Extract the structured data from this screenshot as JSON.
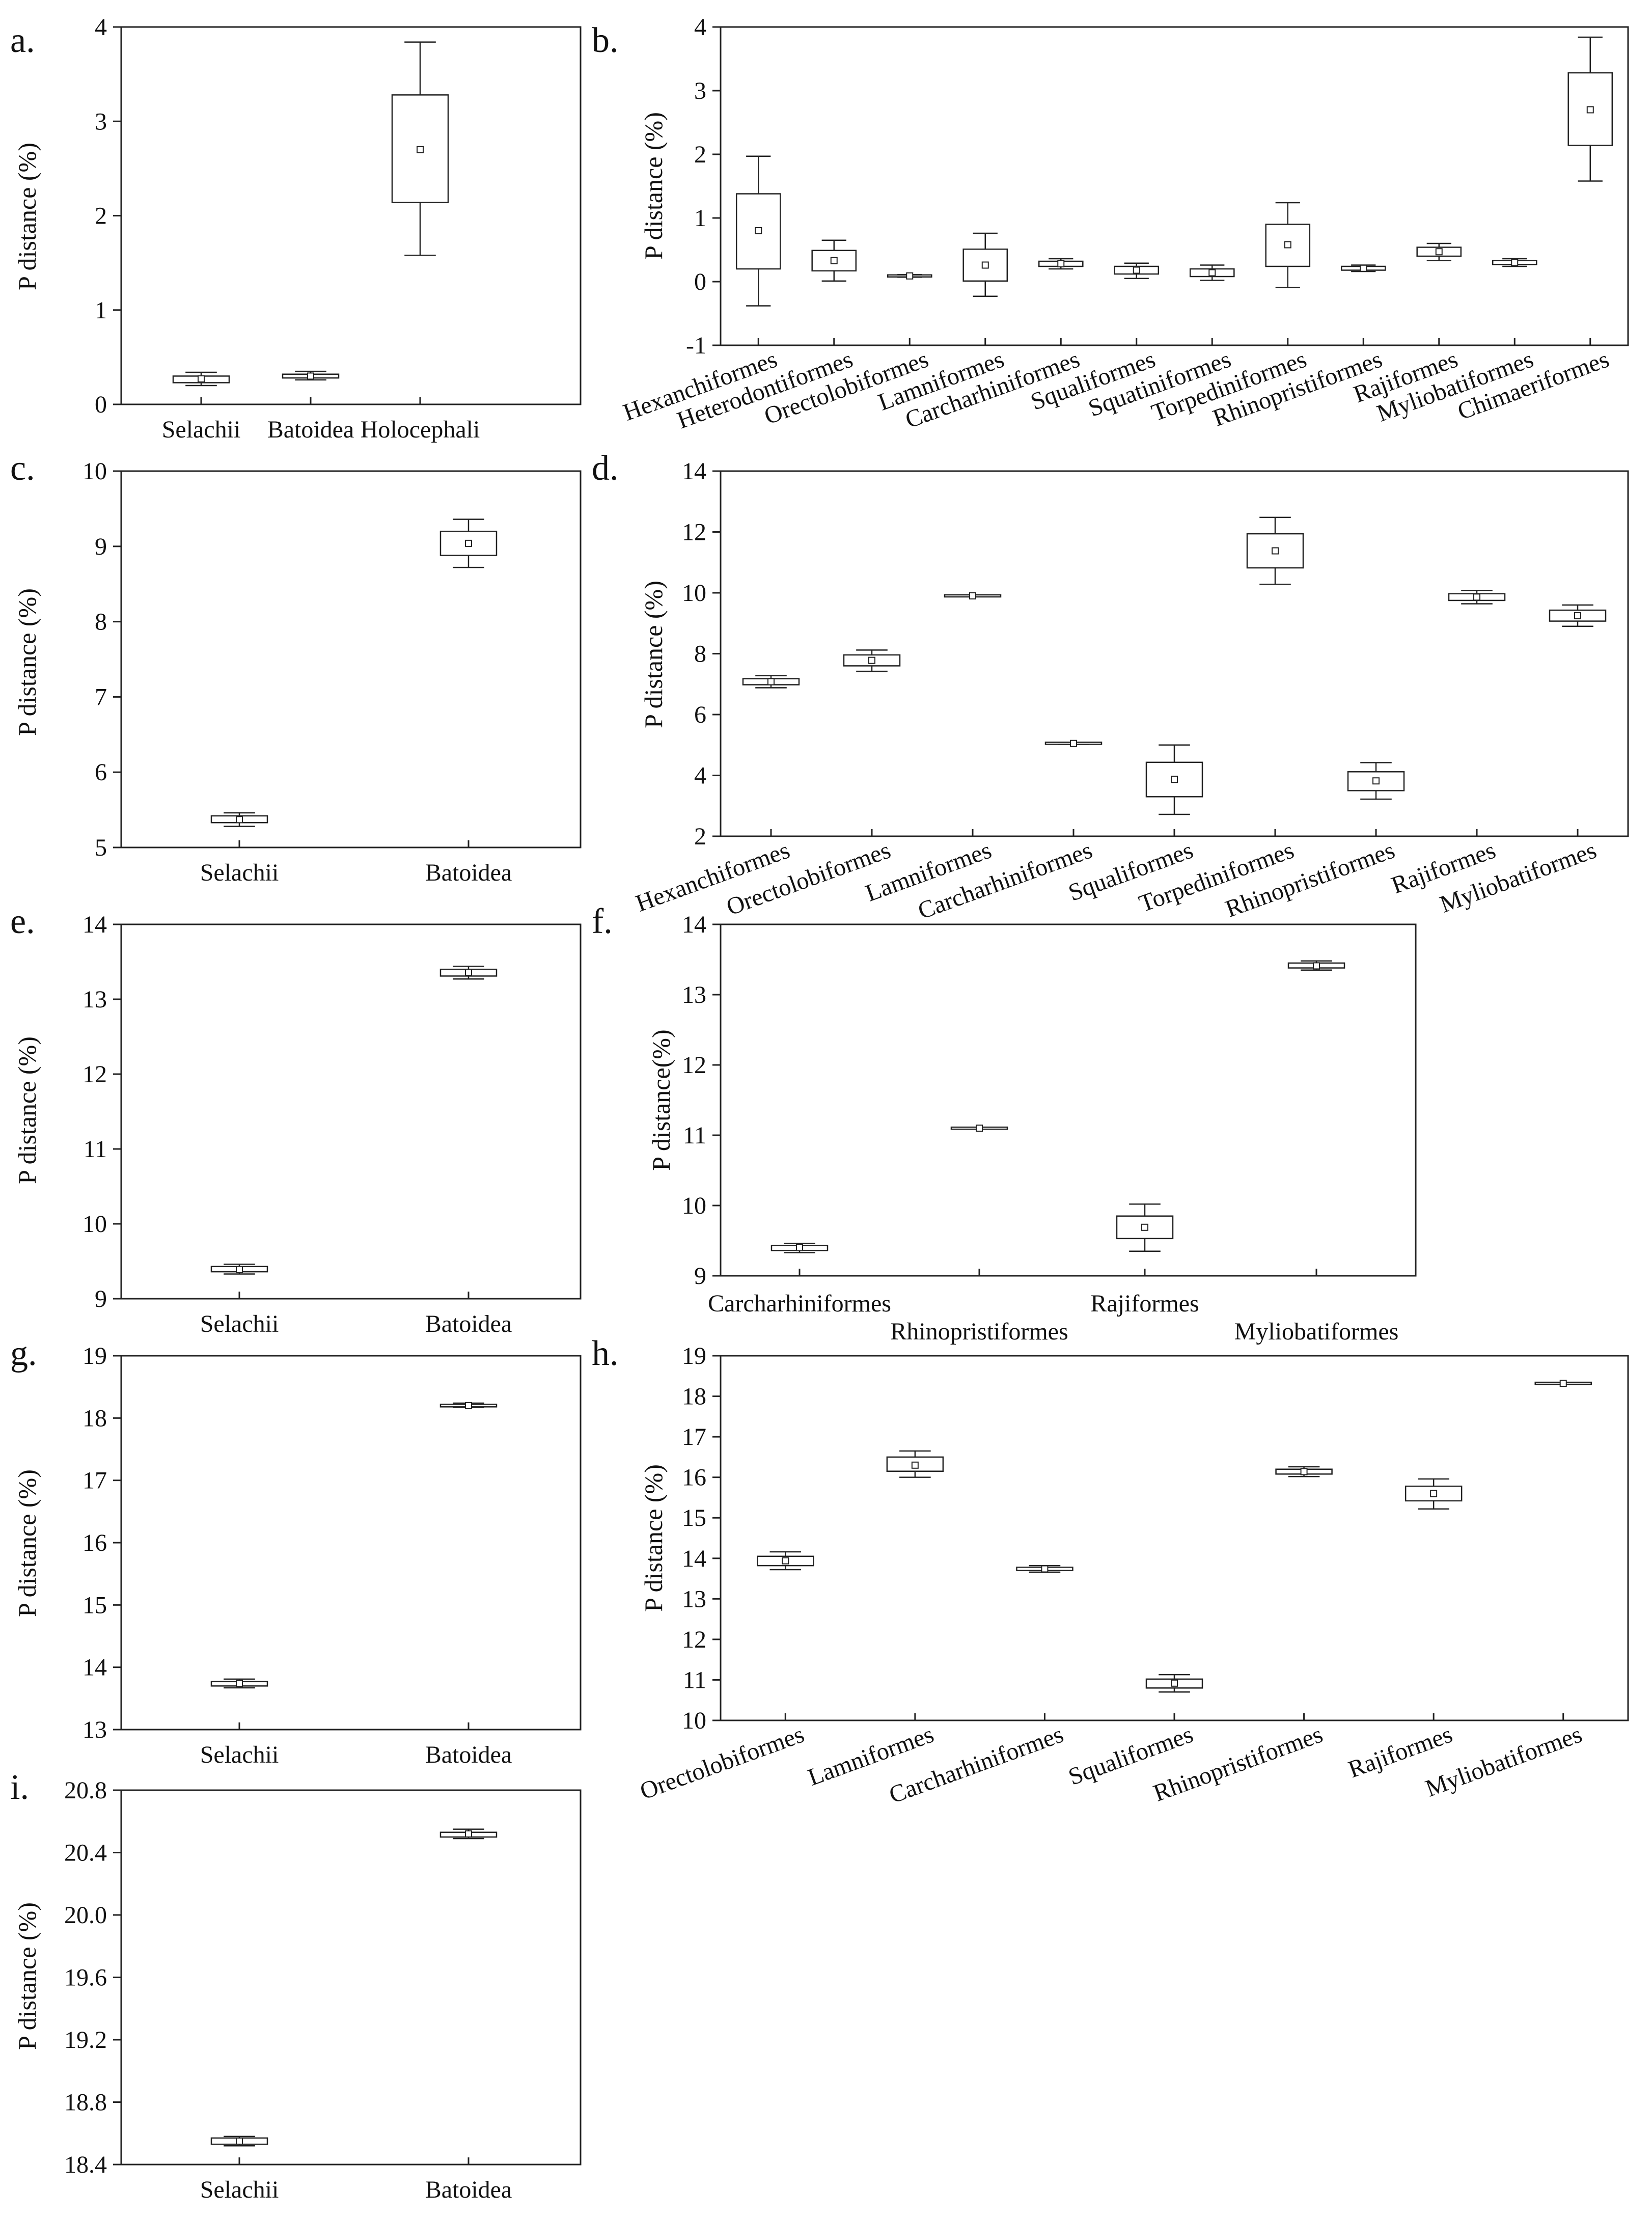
{
  "chart_data": [
    {
      "panel": "a.",
      "type": "box",
      "ylabel": "P distance (%)",
      "ylim": [
        0,
        4
      ],
      "yticks": [
        "0",
        "1",
        "2",
        "3",
        "4"
      ],
      "categories": [
        "Selachii",
        "Batoidea",
        "Holocephali"
      ],
      "boxes": [
        {
          "min": 0.2,
          "q1": 0.23,
          "mean": 0.27,
          "q3": 0.3,
          "max": 0.34
        },
        {
          "min": 0.26,
          "q1": 0.28,
          "mean": 0.3,
          "q3": 0.32,
          "max": 0.35
        },
        {
          "min": 1.58,
          "q1": 2.14,
          "mean": 2.7,
          "q3": 3.28,
          "max": 3.84
        }
      ]
    },
    {
      "panel": "b.",
      "type": "box",
      "ylabel": "P distance (%)",
      "ylim": [
        -1,
        4
      ],
      "yticks": [
        "-1",
        "0",
        "1",
        "2",
        "3",
        "4"
      ],
      "categories": [
        "Hexanchiformes",
        "Heterodontiformes",
        "Orectolobiformes",
        "Lamniformes",
        "Carcharhiniformes",
        "Squaliformes",
        "Squatiniformes",
        "Torpediniformes",
        "Rhinopristiformes",
        "Rajiformes",
        "Myliobatiformes",
        "Chimaeriformes"
      ],
      "boxes": [
        {
          "min": -0.38,
          "q1": 0.2,
          "mean": 0.8,
          "q3": 1.38,
          "max": 1.97
        },
        {
          "min": 0.01,
          "q1": 0.17,
          "mean": 0.33,
          "q3": 0.49,
          "max": 0.65
        },
        {
          "min": 0.07,
          "q1": 0.08,
          "mean": 0.09,
          "q3": 0.1,
          "max": 0.11
        },
        {
          "min": -0.23,
          "q1": 0.01,
          "mean": 0.26,
          "q3": 0.51,
          "max": 0.76
        },
        {
          "min": 0.2,
          "q1": 0.24,
          "mean": 0.28,
          "q3": 0.32,
          "max": 0.36
        },
        {
          "min": 0.05,
          "q1": 0.12,
          "mean": 0.18,
          "q3": 0.24,
          "max": 0.29
        },
        {
          "min": 0.02,
          "q1": 0.08,
          "mean": 0.14,
          "q3": 0.2,
          "max": 0.26
        },
        {
          "min": -0.09,
          "q1": 0.24,
          "mean": 0.58,
          "q3": 0.9,
          "max": 1.24
        },
        {
          "min": 0.16,
          "q1": 0.18,
          "mean": 0.21,
          "q3": 0.24,
          "max": 0.26
        },
        {
          "min": 0.33,
          "q1": 0.4,
          "mean": 0.47,
          "q3": 0.54,
          "max": 0.6
        },
        {
          "min": 0.24,
          "q1": 0.27,
          "mean": 0.3,
          "q3": 0.33,
          "max": 0.36
        },
        {
          "min": 1.58,
          "q1": 2.14,
          "mean": 2.7,
          "q3": 3.28,
          "max": 3.84
        }
      ]
    },
    {
      "panel": "c.",
      "type": "box",
      "ylabel": "P distance (%)",
      "ylim": [
        5,
        10
      ],
      "yticks": [
        "5",
        "6",
        "7",
        "8",
        "9",
        "10"
      ],
      "categories": [
        "Selachii",
        "Batoidea"
      ],
      "boxes": [
        {
          "min": 5.28,
          "q1": 5.33,
          "mean": 5.37,
          "q3": 5.42,
          "max": 5.46
        },
        {
          "min": 8.72,
          "q1": 8.88,
          "mean": 9.04,
          "q3": 9.2,
          "max": 9.36
        }
      ]
    },
    {
      "panel": "d.",
      "type": "box",
      "ylabel": "P distance (%)",
      "ylim": [
        2,
        14
      ],
      "yticks": [
        "2",
        "4",
        "6",
        "8",
        "10",
        "12",
        "14"
      ],
      "categories": [
        "Hexanchiformes",
        "Orectolobiformes",
        "Lamniformes",
        "Carcharhiniformes",
        "Squaliformes",
        "Torpediniformes",
        "Rhinopristiformes",
        "Rajiformes",
        "Myliobatiformes"
      ],
      "boxes": [
        {
          "min": 6.88,
          "q1": 6.98,
          "mean": 7.08,
          "q3": 7.18,
          "max": 7.28
        },
        {
          "min": 7.42,
          "q1": 7.6,
          "mean": 7.78,
          "q3": 7.96,
          "max": 8.12
        },
        {
          "min": 9.87,
          "q1": 9.88,
          "mean": 9.9,
          "q3": 9.92,
          "max": 9.93
        },
        {
          "min": 5.02,
          "q1": 5.04,
          "mean": 5.05,
          "q3": 5.07,
          "max": 5.08
        },
        {
          "min": 2.72,
          "q1": 3.3,
          "mean": 3.87,
          "q3": 4.43,
          "max": 5.0
        },
        {
          "min": 10.28,
          "q1": 10.82,
          "mean": 11.38,
          "q3": 11.94,
          "max": 12.48
        },
        {
          "min": 3.22,
          "q1": 3.5,
          "mean": 3.82,
          "q3": 4.12,
          "max": 4.42
        },
        {
          "min": 9.64,
          "q1": 9.75,
          "mean": 9.86,
          "q3": 9.97,
          "max": 10.08
        },
        {
          "min": 8.9,
          "q1": 9.07,
          "mean": 9.25,
          "q3": 9.43,
          "max": 9.6
        }
      ]
    },
    {
      "panel": "e.",
      "type": "box",
      "ylabel": "P distance (%)",
      "ylim": [
        9,
        14
      ],
      "yticks": [
        "9",
        "10",
        "11",
        "12",
        "13",
        "14"
      ],
      "categories": [
        "Selachii",
        "Batoidea"
      ],
      "boxes": [
        {
          "min": 9.33,
          "q1": 9.36,
          "mean": 9.39,
          "q3": 9.43,
          "max": 9.46
        },
        {
          "min": 13.27,
          "q1": 13.31,
          "mean": 13.36,
          "q3": 13.4,
          "max": 13.44
        }
      ]
    },
    {
      "panel": "f.",
      "type": "box",
      "ylabel": "P distance(%)",
      "ylim": [
        9,
        14
      ],
      "yticks": [
        "9",
        "10",
        "11",
        "12",
        "13",
        "14"
      ],
      "categories": [
        "Carcharhiniformes",
        "Rhinopristiformes",
        "Rajiformes",
        "Myliobatiformes"
      ],
      "boxes": [
        {
          "min": 9.33,
          "q1": 9.36,
          "mean": 9.4,
          "q3": 9.43,
          "max": 9.46
        },
        {
          "min": 11.1,
          "q1": 11.1,
          "mean": 11.1,
          "q3": 11.1,
          "max": 11.1
        },
        {
          "min": 9.35,
          "q1": 9.53,
          "mean": 9.69,
          "q3": 9.85,
          "max": 10.02
        },
        {
          "min": 13.35,
          "q1": 13.38,
          "mean": 13.41,
          "q3": 13.45,
          "max": 13.48
        }
      ]
    },
    {
      "panel": "g.",
      "type": "box",
      "ylabel": "P distance (%)",
      "ylim": [
        13,
        19
      ],
      "yticks": [
        "13",
        "14",
        "15",
        "16",
        "17",
        "18",
        "19"
      ],
      "categories": [
        "Selachii",
        "Batoidea"
      ],
      "boxes": [
        {
          "min": 13.67,
          "q1": 13.7,
          "mean": 13.74,
          "q3": 13.77,
          "max": 13.81
        },
        {
          "min": 18.17,
          "q1": 18.18,
          "mean": 18.2,
          "q3": 18.22,
          "max": 18.24
        }
      ]
    },
    {
      "panel": "h.",
      "type": "box",
      "ylabel": "P distance (%)",
      "ylim": [
        10,
        19
      ],
      "yticks": [
        "10",
        "11",
        "12",
        "13",
        "14",
        "15",
        "16",
        "17",
        "18",
        "19"
      ],
      "categories": [
        "Orectolobiformes",
        "Lamniformes",
        "Carcharhiniformes",
        "Squaliformes",
        "Rhinopristiformes",
        "Rajiformes",
        "Myliobatiformes"
      ],
      "boxes": [
        {
          "min": 13.72,
          "q1": 13.82,
          "mean": 13.94,
          "q3": 14.05,
          "max": 14.16
        },
        {
          "min": 16.0,
          "q1": 16.15,
          "mean": 16.3,
          "q3": 16.5,
          "max": 16.65
        },
        {
          "min": 13.66,
          "q1": 13.7,
          "mean": 13.74,
          "q3": 13.78,
          "max": 13.82
        },
        {
          "min": 10.7,
          "q1": 10.8,
          "mean": 10.92,
          "q3": 11.02,
          "max": 11.13
        },
        {
          "min": 16.02,
          "q1": 16.08,
          "mean": 16.14,
          "q3": 16.2,
          "max": 16.26
        },
        {
          "min": 15.22,
          "q1": 15.42,
          "mean": 15.6,
          "q3": 15.78,
          "max": 15.96
        },
        {
          "min": 18.3,
          "q1": 18.31,
          "mean": 18.32,
          "q3": 18.33,
          "max": 18.34
        }
      ]
    },
    {
      "panel": "i.",
      "type": "box",
      "ylabel": "P distance (%)",
      "ylim": [
        18.4,
        20.8
      ],
      "yticks": [
        "18.4",
        "18.8",
        "19.2",
        "19.6",
        "20.0",
        "20.4",
        "20.8"
      ],
      "categories": [
        "Selachii",
        "Batoidea"
      ],
      "boxes": [
        {
          "min": 18.52,
          "q1": 18.53,
          "mean": 18.55,
          "q3": 18.57,
          "max": 18.58
        },
        {
          "min": 20.49,
          "q1": 20.5,
          "mean": 20.52,
          "q3": 20.53,
          "max": 20.55
        }
      ]
    }
  ]
}
